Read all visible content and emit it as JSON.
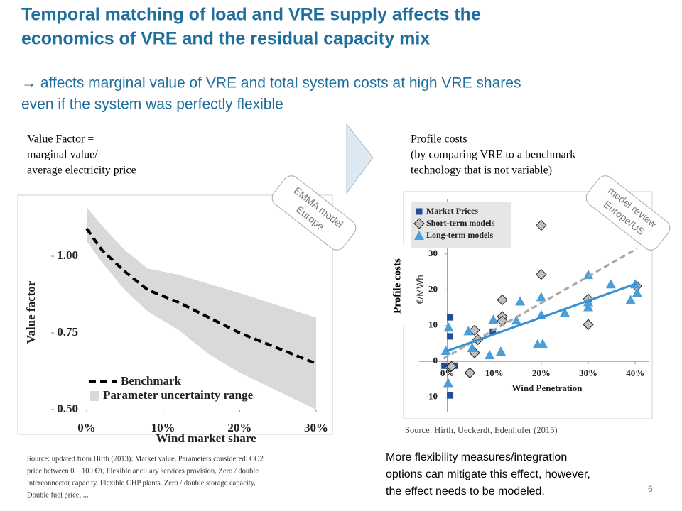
{
  "slide": {
    "title": [
      "Temporal matching of load and VRE supply affects the",
      "economics of VRE and the residual capacity mix"
    ],
    "subtitle": [
      "→ affects marginal value of VRE and total system costs at high VRE shares",
      "even if the system was perfectly flexible"
    ],
    "left_note": [
      "Value Factor =",
      "marginal value/",
      "average electricity price"
    ],
    "right_note": [
      "Profile costs",
      "(by comparing VRE to a benchmark",
      "technology that is not variable)"
    ],
    "badge_left": [
      "EMMA model",
      "Europe"
    ],
    "badge_right": [
      "model review",
      "Europe/US"
    ],
    "source_left": [
      "Source: updated from Hirth (2013): Market value. Parameters considered: CO2",
      "price between 0 – 100 €/t,  Flexible ancillary services provision, Zero / double",
      "interconnector capacity, Flexible CHP plants, Zero / double storage capacity,",
      "Double fuel price, ..."
    ],
    "source_right": "Source: Hirth, Ueckerdt, Edenhofer (2015)",
    "bottom_note": [
      "More flexibility measures/integration",
      "options can mitigate this effect, however,",
      "the effect needs to be modeled."
    ],
    "page_number": "6"
  },
  "chart_data": [
    {
      "type": "line",
      "ylabel": "Value factor",
      "xlabel": "Wind market share",
      "x": [
        0,
        2,
        5,
        8,
        12,
        16,
        20,
        25,
        30
      ],
      "series": [
        {
          "name": "Benchmark",
          "color": "#000000",
          "values": [
            1.09,
            1.02,
            0.95,
            0.89,
            0.85,
            0.8,
            0.75,
            0.7,
            0.65
          ]
        }
      ],
      "band": {
        "name": "Parameter uncertainty range",
        "color": "#d9d9d9",
        "upper": [
          1.16,
          1.1,
          1.02,
          0.96,
          0.94,
          0.91,
          0.88,
          0.84,
          0.8
        ],
        "lower": [
          1.05,
          0.98,
          0.89,
          0.82,
          0.76,
          0.68,
          0.62,
          0.56,
          0.5
        ]
      },
      "xlim": [
        0,
        30
      ],
      "xticks": [
        {
          "value": 0,
          "label": "0%"
        },
        {
          "value": 10,
          "label": "10%"
        },
        {
          "value": 20,
          "label": "20%"
        },
        {
          "value": 30,
          "label": "30%"
        }
      ],
      "ylim": [
        0.5,
        1.16
      ],
      "yticks": [
        {
          "value": 0.5,
          "label": "0.50"
        },
        {
          "value": 0.75,
          "label": "0.75"
        },
        {
          "value": 1.0,
          "label": "1.00"
        }
      ]
    },
    {
      "type": "scatter",
      "ylabel": "€/MWh",
      "ylabel_overlay": "Profile costs",
      "xlabel": "Wind Penetration",
      "series": [
        {
          "name": "Market Prices",
          "color": "#1f4e9a",
          "marker": "square",
          "x": [
            0.6,
            0.6,
            0.6,
            9.7,
            1.5,
            -0.6
          ],
          "values": [
            12.3,
            7,
            -9.5,
            8.3,
            -1.2,
            -1.2
          ]
        },
        {
          "name": "Short-term models",
          "color": "#bfbfbf",
          "marker": "diamond",
          "x": [
            20,
            20,
            11.7,
            11.7,
            11.7,
            5.8,
            6.5,
            5.8,
            4.8,
            0.6,
            0.9,
            30,
            30,
            40.3
          ],
          "values": [
            38,
            24.3,
            17.2,
            12.5,
            11.3,
            8.7,
            6.1,
            2.4,
            -3.2,
            -1.6,
            -1.4,
            17.4,
            10.3,
            21
          ]
        },
        {
          "name": "Long-term models",
          "color": "#4a9fd8",
          "marker": "triangle",
          "x": [
            0.3,
            -0.3,
            0.2,
            4.5,
            5.3,
            9,
            9.8,
            11.4,
            15.5,
            14.7,
            20,
            20,
            19.2,
            20.3,
            25,
            30,
            30,
            30,
            34.8,
            39,
            40,
            40.4
          ],
          "values": [
            9.5,
            3,
            -6,
            8.5,
            3.8,
            1.8,
            11.7,
            2.8,
            16.8,
            11.5,
            18,
            13,
            4.8,
            5,
            13.7,
            24.2,
            16.6,
            15.2,
            21.6,
            17.2,
            21.6,
            19.2
          ]
        }
      ],
      "trend_lines": [
        {
          "color": "#a6a6a6",
          "dashed": true,
          "x": [
            -0.8,
            40.4
          ],
          "values": [
            0.8,
            31.5
          ]
        },
        {
          "color": "#3a8fd0",
          "dashed": false,
          "x": [
            -0.3,
            40.4
          ],
          "values": [
            2.8,
            21.8
          ]
        }
      ],
      "xlim": [
        -7.5,
        43.6
      ],
      "xticks": [
        {
          "value": 0,
          "label": "0%"
        },
        {
          "value": 10,
          "label": "10%"
        },
        {
          "value": 20,
          "label": "20%"
        },
        {
          "value": 30,
          "label": "30%"
        },
        {
          "value": 40,
          "label": "40%"
        }
      ],
      "ylim": [
        -16,
        47
      ],
      "yticks": [
        -10,
        0,
        10,
        20,
        30
      ]
    }
  ]
}
